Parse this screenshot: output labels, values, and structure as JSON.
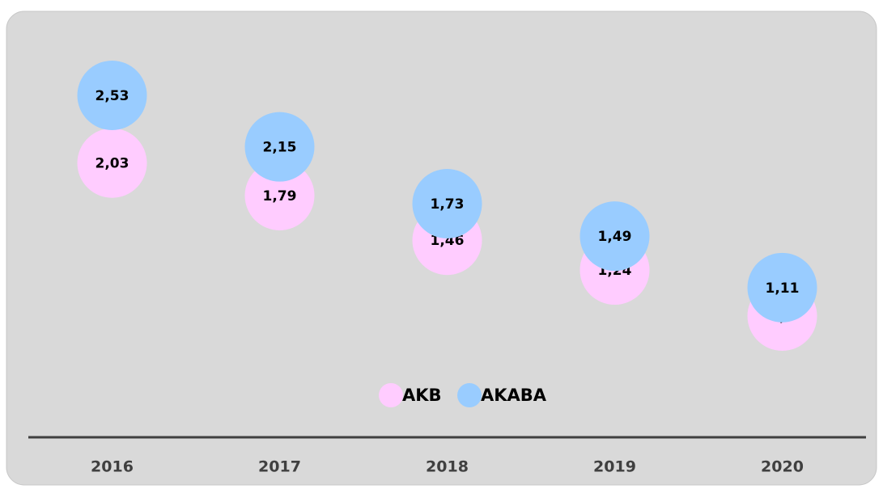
{
  "chart_data": {
    "type": "dot",
    "categories": [
      "2016",
      "2017",
      "2018",
      "2019",
      "2020"
    ],
    "series": [
      {
        "name": "AKB",
        "color": "#ffccff",
        "values": [
          2.03,
          1.79,
          1.46,
          1.24,
          0.9
        ],
        "value_labels": [
          "2,03",
          "1,79",
          "1,46",
          "1,24",
          "0,9"
        ]
      },
      {
        "name": "AKABA",
        "color": "#99ccff",
        "values": [
          2.53,
          2.15,
          1.73,
          1.49,
          1.11
        ],
        "value_labels": [
          "2,53",
          "2,15",
          "1,73",
          "1,49",
          "1,11"
        ]
      }
    ],
    "legend": "bottom"
  }
}
